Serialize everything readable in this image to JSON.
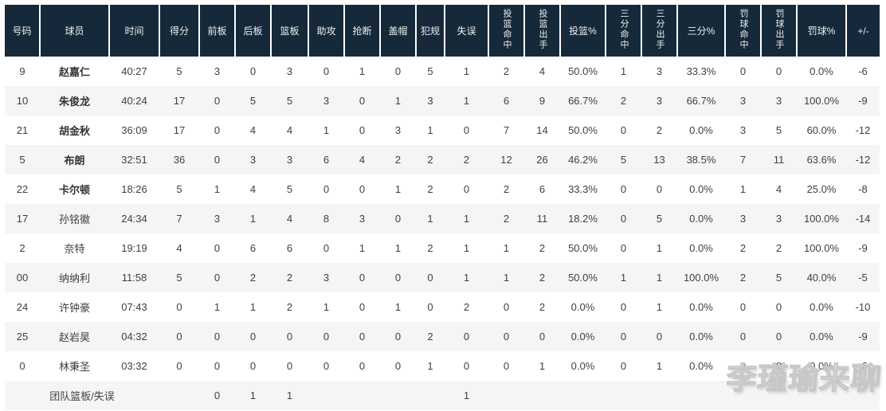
{
  "colors": {
    "header_bg": "#16293b",
    "header_text": "#eef0ec",
    "body_text": "#404040",
    "row_alt": "#f5f5f5"
  },
  "watermark": "李瑾瑜来聊",
  "table": {
    "columns": [
      {
        "key": "number",
        "label": "号码",
        "vertical": false
      },
      {
        "key": "player",
        "label": "球员",
        "vertical": false
      },
      {
        "key": "time",
        "label": "时间",
        "vertical": false
      },
      {
        "key": "points",
        "label": "得分",
        "vertical": false
      },
      {
        "key": "oreb",
        "label": "前板",
        "vertical": false
      },
      {
        "key": "dreb",
        "label": "后板",
        "vertical": false
      },
      {
        "key": "reb",
        "label": "篮板",
        "vertical": false
      },
      {
        "key": "ast",
        "label": "助攻",
        "vertical": false
      },
      {
        "key": "stl",
        "label": "抢断",
        "vertical": false
      },
      {
        "key": "blk",
        "label": "盖帽",
        "vertical": false
      },
      {
        "key": "pf",
        "label": "犯规",
        "vertical": false
      },
      {
        "key": "tov",
        "label": "失误",
        "vertical": false
      },
      {
        "key": "fgm",
        "label": "投篮命中",
        "vertical": true
      },
      {
        "key": "fga",
        "label": "投篮出手",
        "vertical": true
      },
      {
        "key": "fgpct",
        "label": "投篮%",
        "vertical": false
      },
      {
        "key": "tpm",
        "label": "三分命中",
        "vertical": true
      },
      {
        "key": "tpa",
        "label": "三分出手",
        "vertical": true
      },
      {
        "key": "tppct",
        "label": "三分%",
        "vertical": false
      },
      {
        "key": "ftm",
        "label": "罚球命中",
        "vertical": true
      },
      {
        "key": "fta",
        "label": "罚球出手",
        "vertical": true
      },
      {
        "key": "ftpct",
        "label": "罚球%",
        "vertical": false
      },
      {
        "key": "plusminus",
        "label": "+/-",
        "vertical": false
      }
    ],
    "rows": [
      {
        "bold": true,
        "cells": [
          "9",
          "赵嘉仁",
          "40:27",
          "5",
          "3",
          "0",
          "3",
          "0",
          "1",
          "0",
          "5",
          "1",
          "2",
          "4",
          "50.0%",
          "1",
          "3",
          "33.3%",
          "0",
          "0",
          "0.0%",
          "-6"
        ]
      },
      {
        "bold": true,
        "cells": [
          "10",
          "朱俊龙",
          "40:24",
          "17",
          "0",
          "5",
          "5",
          "3",
          "0",
          "1",
          "3",
          "1",
          "6",
          "9",
          "66.7%",
          "2",
          "3",
          "66.7%",
          "3",
          "3",
          "100.0%",
          "-9"
        ]
      },
      {
        "bold": true,
        "cells": [
          "21",
          "胡金秋",
          "36:09",
          "17",
          "0",
          "4",
          "4",
          "1",
          "0",
          "3",
          "1",
          "0",
          "7",
          "14",
          "50.0%",
          "0",
          "2",
          "0.0%",
          "3",
          "5",
          "60.0%",
          "-12"
        ]
      },
      {
        "bold": true,
        "cells": [
          "5",
          "布朗",
          "32:51",
          "36",
          "0",
          "3",
          "3",
          "6",
          "4",
          "2",
          "2",
          "2",
          "12",
          "26",
          "46.2%",
          "5",
          "13",
          "38.5%",
          "7",
          "11",
          "63.6%",
          "-12"
        ]
      },
      {
        "bold": true,
        "cells": [
          "22",
          "卡尔顿",
          "18:26",
          "5",
          "1",
          "4",
          "5",
          "0",
          "0",
          "1",
          "2",
          "0",
          "2",
          "6",
          "33.3%",
          "0",
          "0",
          "0.0%",
          "1",
          "4",
          "25.0%",
          "-8"
        ]
      },
      {
        "bold": false,
        "cells": [
          "17",
          "孙铭徽",
          "24:34",
          "7",
          "3",
          "1",
          "4",
          "8",
          "3",
          "0",
          "1",
          "1",
          "2",
          "11",
          "18.2%",
          "0",
          "5",
          "0.0%",
          "3",
          "3",
          "100.0%",
          "-14"
        ]
      },
      {
        "bold": false,
        "cells": [
          "2",
          "奈特",
          "19:19",
          "4",
          "0",
          "6",
          "6",
          "0",
          "1",
          "1",
          "2",
          "1",
          "1",
          "2",
          "50.0%",
          "0",
          "1",
          "0.0%",
          "2",
          "2",
          "100.0%",
          "-9"
        ]
      },
      {
        "bold": false,
        "cells": [
          "00",
          "纳纳利",
          "11:58",
          "5",
          "0",
          "2",
          "2",
          "3",
          "0",
          "0",
          "0",
          "1",
          "1",
          "2",
          "50.0%",
          "1",
          "1",
          "100.0%",
          "2",
          "5",
          "40.0%",
          "-5"
        ]
      },
      {
        "bold": false,
        "cells": [
          "24",
          "许钟豪",
          "07:43",
          "0",
          "1",
          "1",
          "2",
          "1",
          "0",
          "1",
          "0",
          "2",
          "0",
          "2",
          "0.0%",
          "0",
          "1",
          "0.0%",
          "0",
          "0",
          "0.0%",
          "-10"
        ]
      },
      {
        "bold": false,
        "cells": [
          "25",
          "赵岩昊",
          "04:32",
          "0",
          "0",
          "0",
          "0",
          "0",
          "0",
          "0",
          "2",
          "0",
          "0",
          "0",
          "0.0%",
          "0",
          "0",
          "0.0%",
          "0",
          "0",
          "0.0%",
          "-9"
        ]
      },
      {
        "bold": false,
        "cells": [
          "0",
          "林秉圣",
          "03:32",
          "0",
          "0",
          "0",
          "0",
          "0",
          "0",
          "0",
          "1",
          "0",
          "0",
          "1",
          "0.0%",
          "0",
          "1",
          "0.0%",
          "0",
          "0",
          "0.0%",
          "-6"
        ]
      }
    ],
    "team_row": {
      "label": "团队篮板/失误",
      "label_colspan": 3,
      "values": [
        "",
        "0",
        "1",
        "1",
        "",
        "",
        "",
        "",
        "1",
        "",
        "",
        "",
        "",
        "",
        "",
        "",
        "",
        "",
        ""
      ]
    }
  }
}
